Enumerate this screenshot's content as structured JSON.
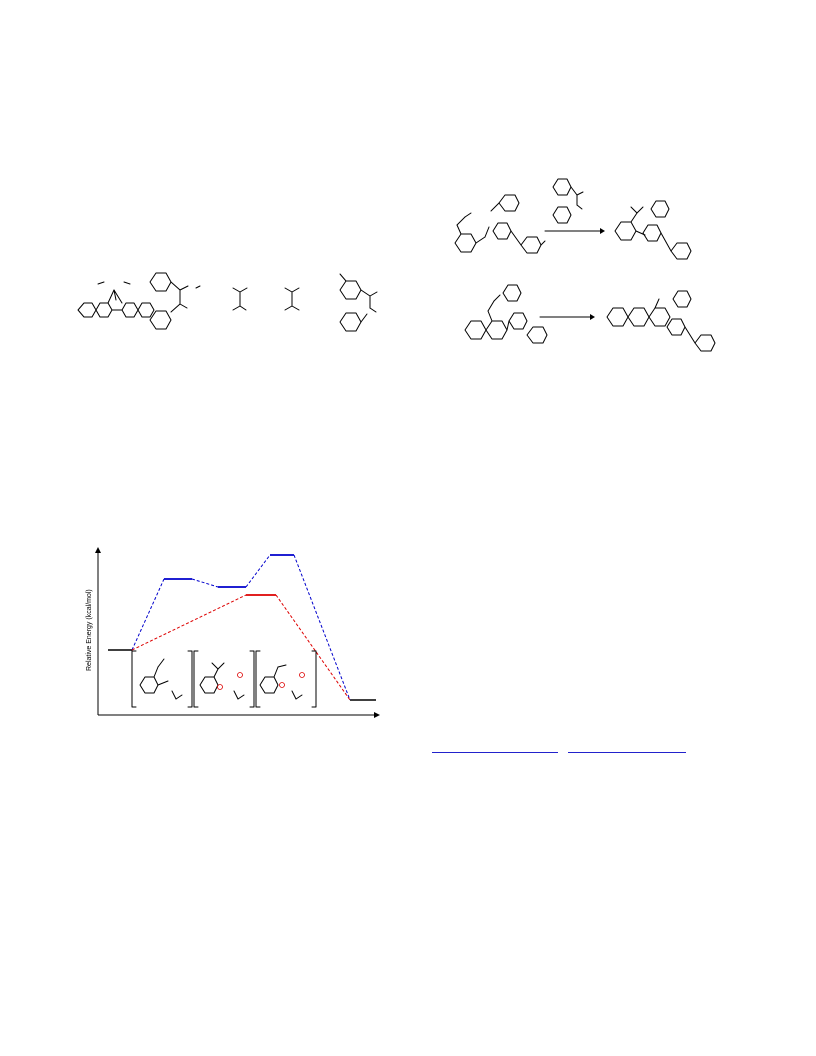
{
  "page": {
    "background": "#ffffff"
  },
  "figure_top_left": {
    "structures": [
      "triptycene-diene",
      "stilbene-diol-derivative",
      "tetrasubstituted-fragment-1",
      "tetrasubstituted-fragment-2",
      "aryl-tolyl-fragment"
    ]
  },
  "scheme_right": {
    "reactions": [
      {
        "substrate": "styrenyl-aryl-piperazine-amide",
        "reagent": "diaryl-fragment",
        "product": "cyclized-piperazine-amide"
      },
      {
        "substrate": "naphthyl-vinyl-piperazine-amide",
        "reagent": "",
        "product": "benzo-fused-cyclized-amide"
      }
    ],
    "arrow_color": "#000000"
  },
  "energy_diagram": {
    "ylabel": "Relative Energy (kcal/mol)",
    "series": [
      {
        "color": "#0000cc",
        "levels": [
          "start",
          "intermediate-1",
          "intermediate-2",
          "transition-state",
          "product"
        ]
      },
      {
        "color": "#dd0000",
        "levels": [
          "start",
          "intermediate",
          "product"
        ]
      }
    ],
    "bracket_count": 3,
    "marker_color": "#dd0000"
  },
  "footnote_links": {
    "color": "#2222cc",
    "count": 2
  }
}
